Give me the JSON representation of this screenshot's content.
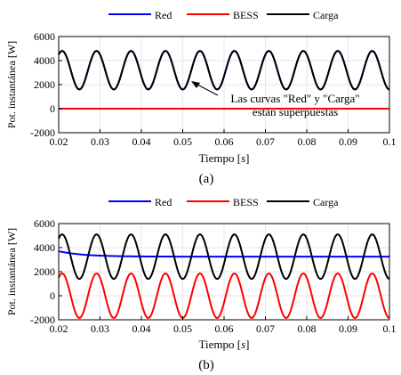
{
  "colors": {
    "red": "#0000ff",
    "bess": "#ff0000",
    "carga": "#000000",
    "grid": "#e6e6e6",
    "axis": "#000000"
  },
  "chart_data": [
    {
      "type": "line",
      "panel_label": "(a)",
      "legend": [
        "Red",
        "BESS",
        "Carga"
      ],
      "legend_placement": "top-center",
      "xlabel": "Tiempo [s]",
      "ylabel": "Pot. instantánea [W]",
      "xlim": [
        0.02,
        0.1
      ],
      "ylim": [
        -2000,
        6000
      ],
      "xticks": [
        "0.02",
        "0.03",
        "0.04",
        "0.05",
        "0.06",
        "0.07",
        "0.08",
        "0.09",
        "0.1"
      ],
      "yticks": [
        "-2000",
        "0",
        "2000",
        "4000",
        "6000"
      ],
      "grid": true,
      "series": [
        {
          "name": "Red",
          "kind": "sine",
          "offset": 3200,
          "amplitude": 1600,
          "frequency_hz": 120,
          "phase_deg": -90
        },
        {
          "name": "BESS",
          "kind": "constant",
          "value": 0
        },
        {
          "name": "Carga",
          "kind": "sine",
          "offset": 3200,
          "amplitude": 1600,
          "frequency_hz": 120,
          "phase_deg": -90
        }
      ],
      "annotation": {
        "lines": [
          "Las curvas \"Red\" y \"Carga\"",
          "están superpuestas"
        ],
        "arrow_to": [
          0.0525,
          1750
        ]
      }
    },
    {
      "type": "line",
      "panel_label": "(b)",
      "legend": [
        "Red",
        "BESS",
        "Carga"
      ],
      "legend_placement": "top-center",
      "xlabel": "Tiempo [s]",
      "ylabel": "Pot. instantánea [W]",
      "xlim": [
        0.02,
        0.1
      ],
      "ylim": [
        -2000,
        6000
      ],
      "xticks": [
        "0.02",
        "0.03",
        "0.04",
        "0.05",
        "0.06",
        "0.07",
        "0.08",
        "0.09",
        "0.1"
      ],
      "yticks": [
        "-2000",
        "0",
        "2000",
        "4000",
        "6000"
      ],
      "grid": true,
      "series": [
        {
          "name": "Red",
          "kind": "settling",
          "start": 3700,
          "final": 3250,
          "tau_s": 0.006,
          "start_x": 0.02
        },
        {
          "name": "BESS",
          "kind": "sine",
          "offset": 0,
          "amplitude": 1850,
          "frequency_hz": 120,
          "phase_deg": -90
        },
        {
          "name": "Carga",
          "kind": "sine",
          "offset": 3250,
          "amplitude": 1850,
          "frequency_hz": 120,
          "phase_deg": -90
        }
      ]
    }
  ]
}
